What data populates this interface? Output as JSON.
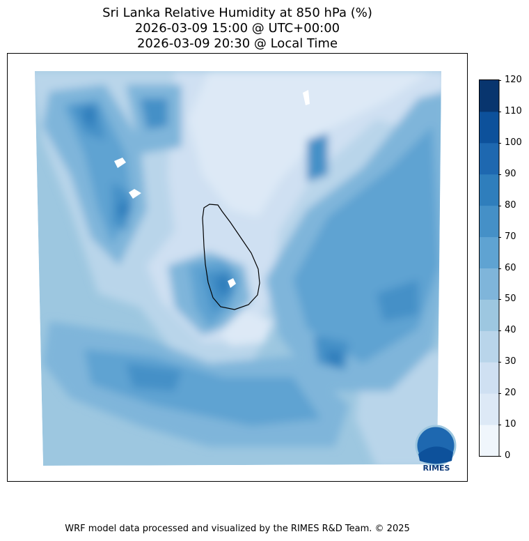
{
  "title_lines": [
    "Sri Lanka Relative Humidity at 850 hPa (%)",
    "2026-03-09 15:00 @ UTC+00:00",
    "2026-03-09 20:30 @ Local Time"
  ],
  "colorbar": {
    "ticks": [
      "0",
      "10",
      "20",
      "30",
      "40",
      "50",
      "60",
      "70",
      "80",
      "90",
      "100",
      "110",
      "120"
    ],
    "levels": [
      0,
      10,
      20,
      30,
      40,
      50,
      60,
      70,
      80,
      90,
      100,
      110,
      120
    ],
    "colors": [
      "#f0f6fc",
      "#dde9f6",
      "#cfe0f2",
      "#b9d5ea",
      "#9dc7e0",
      "#7fb5da",
      "#5fa3d2",
      "#4590c7",
      "#2f7ebc",
      "#1e68b0",
      "#0d519b",
      "#08356e"
    ]
  },
  "logo": {
    "text": "RIMES"
  },
  "footer": "WRF model data processed and visualized by the RIMES R&D Team. © 2025"
}
